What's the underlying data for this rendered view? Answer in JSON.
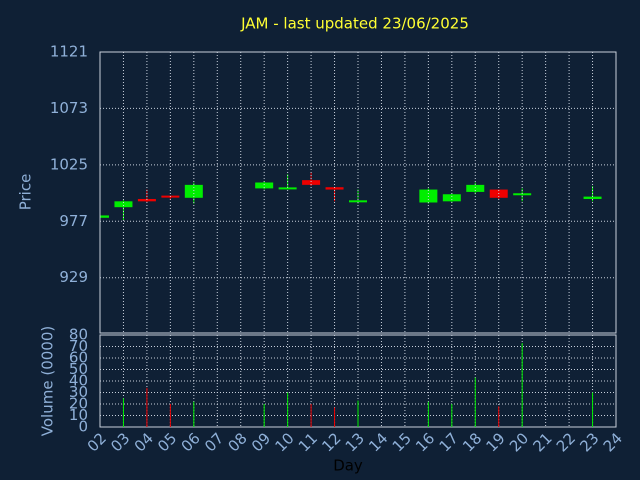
{
  "chart_data": [
    {
      "type": "candlestick",
      "title": "JAM - last updated 23/06/2025",
      "ylabel": "Price",
      "categories": [
        "02",
        "03",
        "04",
        "05",
        "06",
        "07",
        "08",
        "09",
        "10",
        "11",
        "12",
        "13",
        "14",
        "15",
        "16",
        "17",
        "18",
        "19",
        "20",
        "21",
        "22",
        "23",
        "24"
      ],
      "x": [
        "02",
        "03",
        "04",
        "05",
        "06",
        "09",
        "10",
        "11",
        "12",
        "13",
        "16",
        "17",
        "18",
        "19",
        "20",
        "23"
      ],
      "open": [
        980,
        989,
        996,
        998,
        997,
        1005,
        1004,
        1012,
        1006,
        993,
        993,
        994,
        1002,
        1004,
        999,
        996
      ],
      "high": [
        982,
        995,
        1004,
        999,
        1010,
        1011,
        1017,
        1019,
        1006,
        1004,
        1005,
        1001,
        1010,
        1004,
        1005,
        1007
      ],
      "low": [
        980,
        978,
        993,
        996,
        992,
        1004,
        1004,
        1007,
        994,
        992,
        992,
        993,
        1000,
        996,
        994,
        994
      ],
      "close": [
        982,
        994,
        994,
        997,
        1008,
        1010,
        1005,
        1008,
        1004,
        994,
        1004,
        1000,
        1008,
        997,
        1000,
        998
      ],
      "up_color": "#00ee00",
      "down_color": "#ee0000",
      "ylim": [
        882,
        1121
      ],
      "yticks": [
        929,
        977,
        1025,
        1073,
        1121
      ],
      "grid": true
    },
    {
      "type": "bar",
      "xlabel": "Day",
      "ylabel": "Volume (0000)",
      "categories": [
        "02",
        "03",
        "04",
        "05",
        "06",
        "07",
        "08",
        "09",
        "10",
        "11",
        "12",
        "13",
        "14",
        "15",
        "16",
        "17",
        "18",
        "19",
        "20",
        "21",
        "22",
        "23",
        "24"
      ],
      "x": [
        "03",
        "04",
        "05",
        "06",
        "09",
        "10",
        "11",
        "12",
        "13",
        "16",
        "17",
        "18",
        "19",
        "20",
        "23"
      ],
      "values": [
        25,
        34,
        20,
        22,
        20,
        30,
        20,
        17,
        23,
        22,
        20,
        43,
        18,
        73,
        30
      ],
      "colors": [
        "#00ee00",
        "#ee0000",
        "#ee0000",
        "#00ee00",
        "#00ee00",
        "#00ee00",
        "#ee0000",
        "#ee0000",
        "#00ee00",
        "#00ee00",
        "#00ee00",
        "#00ee00",
        "#ee0000",
        "#00ee00",
        "#00ee00"
      ],
      "ylim": [
        0,
        80
      ],
      "yticks": [
        0,
        10,
        20,
        30,
        40,
        50,
        60,
        70,
        80
      ],
      "grid": true
    }
  ]
}
